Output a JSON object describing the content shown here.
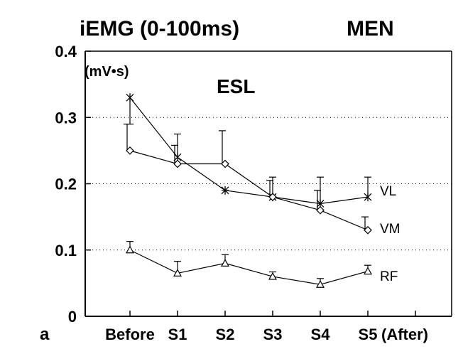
{
  "chart_data": {
    "type": "line",
    "title": "iEMG (0-100ms)",
    "title_group": "MEN",
    "subtitle": "ESL",
    "ylabel": "(mV•s)",
    "panel_label": "a",
    "categories": [
      "Before",
      "S1",
      "S2",
      "S3",
      "S4",
      "S5"
    ],
    "x_suffix": "(After)",
    "ylim": [
      0,
      0.4
    ],
    "yticks": [
      "0",
      "0.1",
      "0.2",
      "0.3",
      "0.4"
    ],
    "ytick_values": [
      0,
      0.1,
      0.2,
      0.3,
      0.4
    ],
    "grid": "horizontal dotted at 0.1, 0.2, 0.3",
    "series": [
      {
        "name": "VL",
        "marker": "asterisk",
        "values": [
          0.33,
          0.24,
          0.19,
          0.18,
          0.17,
          0.18
        ],
        "error_top": [
          0.29,
          0.275,
          0.19,
          0.21,
          0.21,
          0.21
        ]
      },
      {
        "name": "VM",
        "marker": "diamond",
        "values": [
          0.25,
          0.23,
          0.23,
          0.18,
          0.16,
          0.13
        ],
        "error_top": [
          0.29,
          0.258,
          0.28,
          0.205,
          0.19,
          0.15
        ]
      },
      {
        "name": "RF",
        "marker": "triangle",
        "values": [
          0.1,
          0.065,
          0.08,
          0.06,
          0.048,
          0.068
        ],
        "error_top": [
          0.113,
          0.083,
          0.093,
          0.067,
          0.057,
          0.077
        ]
      }
    ]
  }
}
